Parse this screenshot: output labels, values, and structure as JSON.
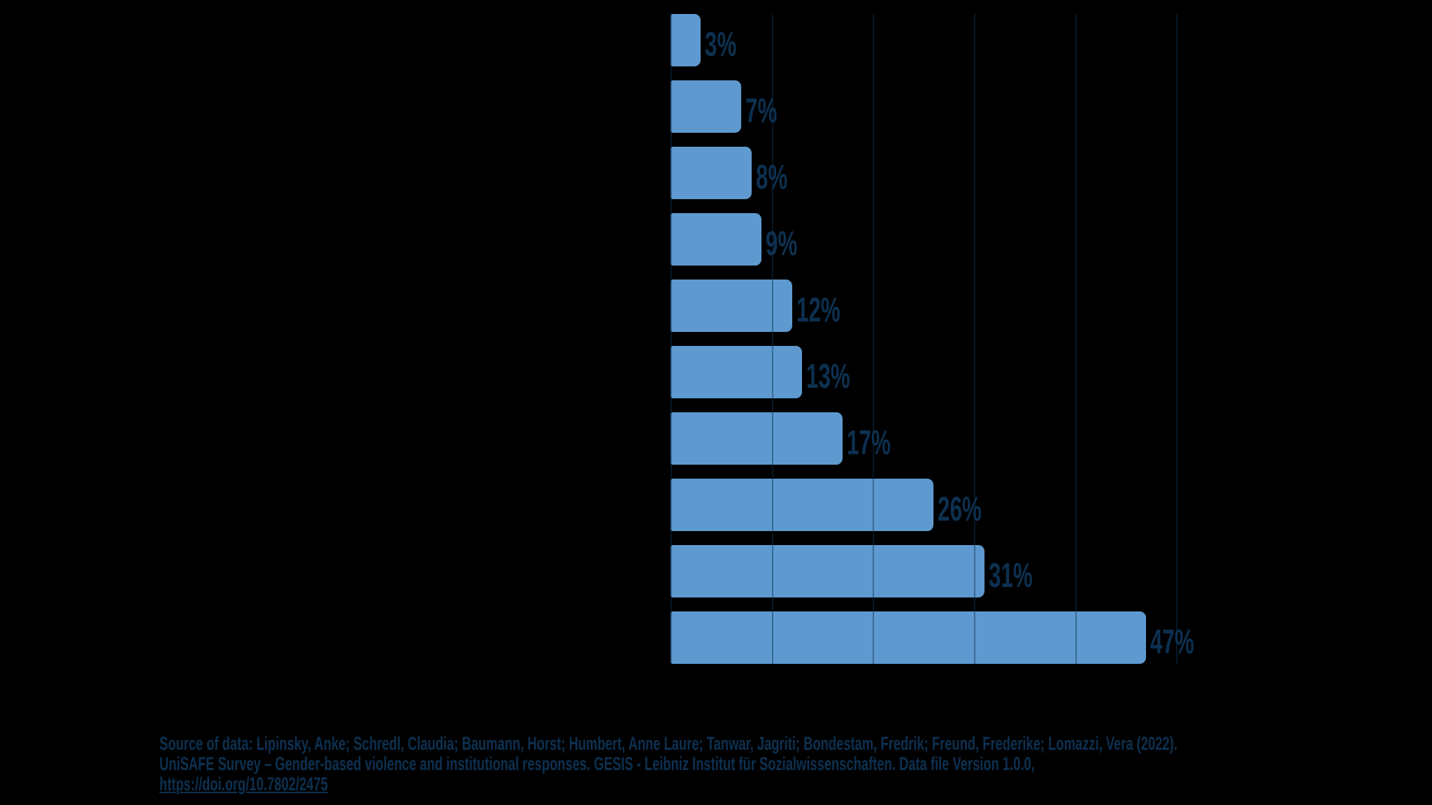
{
  "background_color": "#000000",
  "chart_data": {
    "type": "bar",
    "orientation": "horizontal",
    "values": [
      3,
      7,
      8,
      9,
      12,
      13,
      17,
      26,
      31,
      47
    ],
    "data_labels": [
      "3%",
      "7%",
      "8%",
      "9%",
      "12%",
      "13%",
      "17%",
      "26%",
      "31%",
      "47%"
    ],
    "title": "",
    "xlabel": "",
    "ylabel": "",
    "xlim": [
      0,
      50
    ],
    "gridline_interval_percent": 10,
    "gridline_positions_percent": [
      0,
      10,
      20,
      30,
      40,
      50
    ],
    "legend": "none",
    "category_axis_labels_visible": false,
    "bar_color": "#5E9ACF",
    "label_color": "#0D3050",
    "gridline_color": "rgba(13,48,80,0.45)"
  },
  "source": {
    "line1": "Source of data: Lipinsky, Anke; Schredl, Claudia; Baumann, Horst; Humbert, Anne Laure; Tanwar, Jagriti; Bondestam, Fredrik; Freund, Frederike; Lomazzi, Vera (2022).",
    "line2": "UniSAFE Survey – Gender-based violence and institutional responses. GESIS - Leibniz Institut für Sozialwissenschaften. Data file Version 1.0.0,",
    "link": "https://doi.org/10.7802/2475",
    "text_color": "#0D3050"
  }
}
